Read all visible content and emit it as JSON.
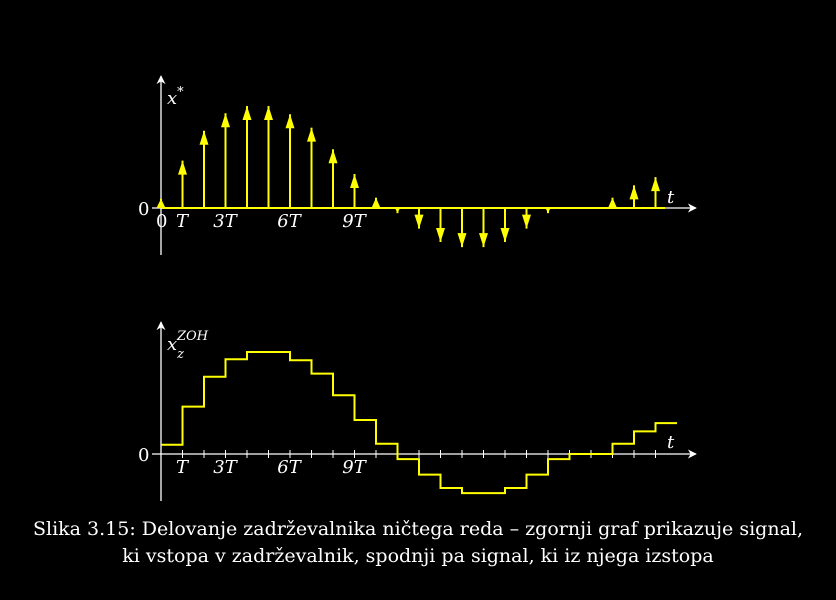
{
  "top_graph": {
    "y_axis_label": "x",
    "y_axis_label_sup": "*",
    "x_axis_label": "t",
    "zero_label": "0",
    "origin_tick_label": "0",
    "tick_labels": [
      "T",
      "3T",
      "6T",
      "9T"
    ]
  },
  "bottom_graph": {
    "y_axis_label": "x",
    "y_axis_label_sub": "z",
    "y_axis_label_sup": "ZOH",
    "x_axis_label": "t",
    "zero_label": "0",
    "tick_labels": [
      "T",
      "3T",
      "6T",
      "9T"
    ]
  },
  "caption": {
    "line1": "Slika 3.15: Delovanje zadrževalnika ničtega reda – zgornji graf prikazuje signal,",
    "line2": "ki vstopa v zadrževalnik, spodnji pa signal, ki iz njega izstopa"
  },
  "chart_data": {
    "type": "stem",
    "samples_n": [
      0,
      1,
      2,
      3,
      4,
      5,
      6,
      7,
      8,
      9,
      10,
      11,
      12,
      13,
      14,
      15,
      16,
      17,
      18,
      19,
      20,
      21,
      22,
      23
    ],
    "samples_value": [
      0.09,
      0.46,
      0.75,
      0.92,
      0.99,
      0.99,
      0.91,
      0.78,
      0.57,
      0.33,
      0.1,
      -0.05,
      -0.2,
      -0.33,
      -0.38,
      -0.38,
      -0.33,
      -0.2,
      -0.05,
      0,
      0,
      0.1,
      0.22,
      0.3
    ],
    "colors": {
      "signal": "#ffff00",
      "axes": "#ffffff"
    }
  }
}
